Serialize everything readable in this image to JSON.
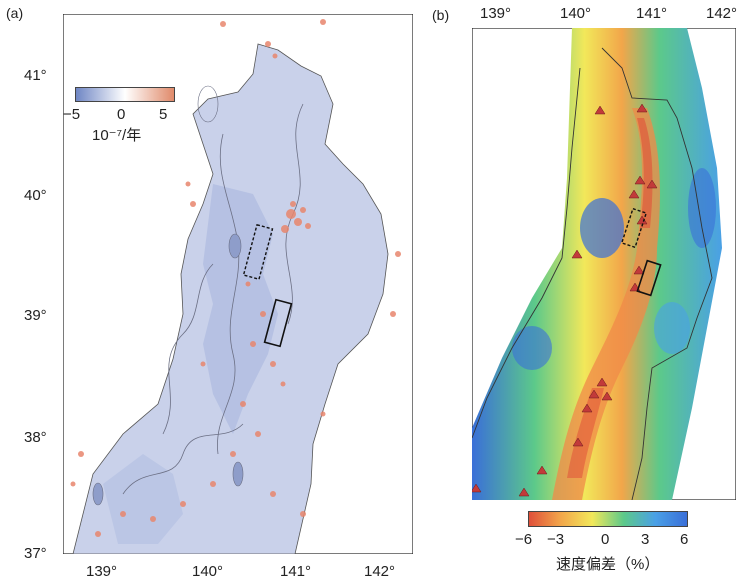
{
  "panel_a": {
    "label": "(a)",
    "lat_ticks": [
      "41°",
      "40°",
      "39°",
      "38°",
      "37°"
    ],
    "lon_ticks": [
      "139°",
      "140°",
      "141°",
      "142°"
    ],
    "colorbar": {
      "tick_labels": [
        "−5",
        "0",
        "5"
      ],
      "unit": "10⁻⁷/年",
      "range": [
        -5,
        5
      ],
      "colors": {
        "negative": "#6f86c4",
        "zero": "#ffffff",
        "positive": "#e08a6a"
      }
    },
    "colors": {
      "strain_negative": "#a9b6dc",
      "seismicity": "#e8866d",
      "contour": "#6b6f84"
    }
  },
  "panel_b": {
    "label": "(b)",
    "lon_ticks": [
      "139°",
      "140°",
      "141°",
      "142°"
    ],
    "colorbar": {
      "tick_labels": [
        "−6",
        "−3",
        "0",
        "3",
        "6"
      ],
      "title": "速度偏差（%）",
      "range": [
        -6,
        6
      ],
      "colors": [
        "#e0503a",
        "#f2a64a",
        "#f2e85a",
        "#5cc98a",
        "#4aa0e6",
        "#3a6fd8"
      ]
    },
    "colors": {
      "volcano": "#c23a3a",
      "coast": "#333333"
    }
  }
}
